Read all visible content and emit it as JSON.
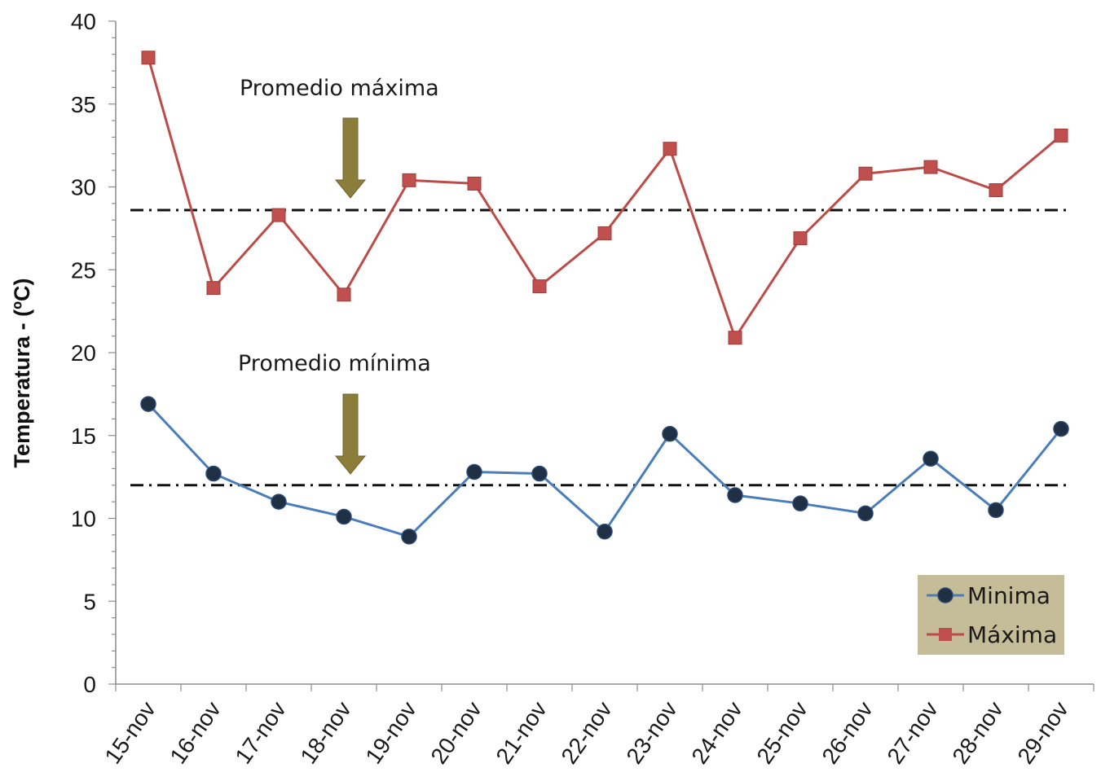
{
  "chart_data": {
    "type": "line",
    "categories": [
      "15-nov",
      "16-nov",
      "17-nov",
      "18-nov",
      "19-nov",
      "20-nov",
      "21-nov",
      "22-nov",
      "23-nov",
      "24-nov",
      "25-nov",
      "26-nov",
      "27-nov",
      "28-nov",
      "29-nov"
    ],
    "series": [
      {
        "name": "Minima",
        "color": "#4a7ebb",
        "marker_color": "#1f2f44",
        "marker": "circle",
        "values": [
          16.9,
          12.7,
          11.0,
          10.1,
          8.9,
          12.8,
          12.7,
          9.2,
          15.1,
          11.4,
          10.9,
          10.3,
          13.6,
          10.5,
          15.4
        ]
      },
      {
        "name": "Máxima",
        "color": "#be4b48",
        "marker_color": "#c0504d",
        "marker": "square",
        "values": [
          37.8,
          23.9,
          28.3,
          23.5,
          30.4,
          30.2,
          24.0,
          27.2,
          32.3,
          20.9,
          26.9,
          30.8,
          31.2,
          29.8,
          33.1
        ]
      }
    ],
    "reference_lines": [
      {
        "name": "promedio-maxima",
        "value": 28.6,
        "label": "Promedio máxima"
      },
      {
        "name": "promedio-minima",
        "value": 12.0,
        "label": "Promedio mínima"
      }
    ],
    "ylabel": "Temperatura - (ºC)",
    "xlabel": "",
    "ylim": [
      0,
      40
    ],
    "yticks": [
      0,
      5,
      10,
      15,
      20,
      25,
      30,
      35,
      40
    ],
    "grid": false,
    "legend_position": "bottom-right",
    "legend_background": "#c4bd97",
    "arrow_color": "#8b7d3a"
  }
}
